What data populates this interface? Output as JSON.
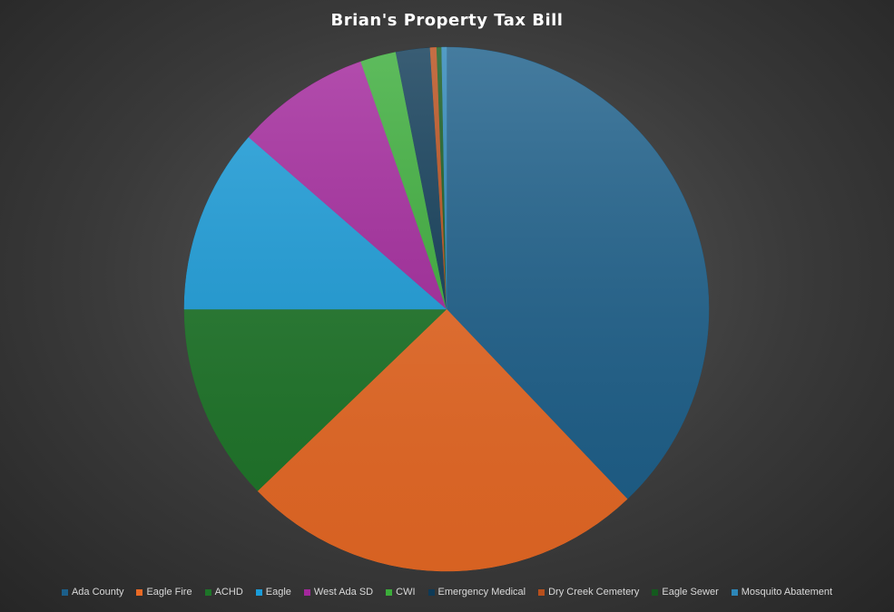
{
  "chart_data": {
    "type": "pie",
    "title": "Brian's Property Tax Bill",
    "categories": [
      "Ada County",
      "Eagle Fire",
      "ACHD",
      "Eagle",
      "West Ada SD",
      "CWI",
      "Emergency Medical",
      "Dry Creek Cemetery",
      "Eagle Sewer",
      "Mosquito Abatement"
    ],
    "values": [
      37.9,
      24.9,
      12.2,
      11.4,
      8.3,
      2.2,
      2.1,
      0.4,
      0.3,
      0.3
    ],
    "colors": [
      "#1c5f8a",
      "#ea6a25",
      "#1d7528",
      "#1a9cd9",
      "#a3279c",
      "#3bad3a",
      "#0e3a56",
      "#b84f1c",
      "#145a1e",
      "#2d86b8"
    ],
    "legend": "bottom"
  }
}
